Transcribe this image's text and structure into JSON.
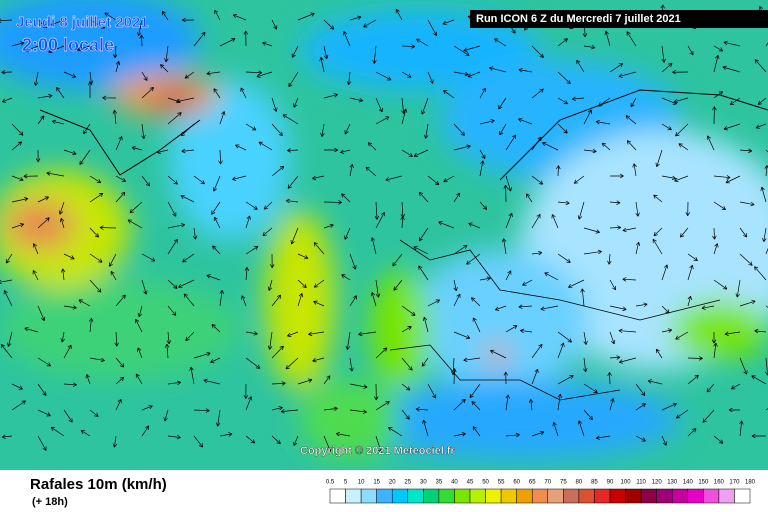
{
  "header": {
    "date": "Jeudi 8 juillet 2021",
    "time": "2:00 locale",
    "run": "Run ICON 6 Z du Mercredi 7 juillet 2021"
  },
  "copyright": "Copyright © 2021 Meteociel.fr",
  "footer": {
    "title": "Rafales 10m (km/h)",
    "lead": "(+ 18h)"
  },
  "legend": {
    "labels": [
      0.5,
      5,
      10,
      15,
      20,
      25,
      30,
      35,
      40,
      45,
      50,
      55,
      60,
      65,
      70,
      75,
      80,
      85,
      90,
      100,
      110,
      120,
      130,
      140,
      150,
      160,
      170,
      180
    ],
    "colors": [
      "#ffffff",
      "#c8f0ff",
      "#8cdcff",
      "#3cb4ff",
      "#00c8ff",
      "#00e6c8",
      "#00d278",
      "#32dc32",
      "#78e600",
      "#b4f000",
      "#f0f000",
      "#f0c800",
      "#f0a000",
      "#f08c50",
      "#e6a078",
      "#c86e5a",
      "#dc5032",
      "#e62828",
      "#c80000",
      "#a00000",
      "#8c0046",
      "#a00078",
      "#c800a0",
      "#e600c8",
      "#f050dc",
      "#f0a0f0",
      "#ffffff"
    ]
  }
}
